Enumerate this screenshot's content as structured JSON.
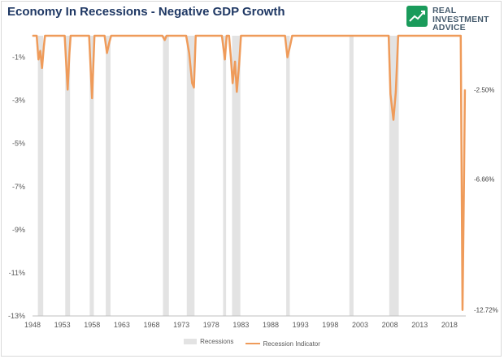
{
  "title": "Economy In Recessions - Negative GDP Growth",
  "logo": {
    "lines": [
      "REAL",
      "INVESTMENT",
      "ADVICE"
    ],
    "icon": "rising-chart-icon",
    "color": "#475c6e",
    "accent": "#1a9b5b"
  },
  "colors": {
    "recession_band": "#e3e3e3",
    "indicator_line": "#ef9b5a",
    "tick_text": "#595959",
    "title": "#1f3864"
  },
  "chart_data": {
    "type": "line",
    "title": "Economy In Recessions - Negative GDP Growth",
    "xlabel": "",
    "ylabel": "",
    "xlim": [
      1948,
      2020.75
    ],
    "ylim": [
      -13,
      0
    ],
    "grid": false,
    "legend_position": "bottom",
    "x_ticks": [
      "1948",
      "1953",
      "1958",
      "1963",
      "1968",
      "1973",
      "1978",
      "1983",
      "1988",
      "1993",
      "1998",
      "2003",
      "2008",
      "2013",
      "2018"
    ],
    "y_ticks": [
      "-1%",
      "-3%",
      "-5%",
      "-7%",
      "-9%",
      "-11%",
      "-13%"
    ],
    "y_tick_values": [
      -1,
      -3,
      -5,
      -7,
      -9,
      -11,
      -13
    ],
    "recessions": [
      {
        "start": 1948.9,
        "end": 1949.8
      },
      {
        "start": 1953.5,
        "end": 1954.3
      },
      {
        "start": 1957.6,
        "end": 1958.3
      },
      {
        "start": 1960.3,
        "end": 1961.1
      },
      {
        "start": 1969.9,
        "end": 1970.9
      },
      {
        "start": 1973.9,
        "end": 1975.2
      },
      {
        "start": 1980.0,
        "end": 1980.5
      },
      {
        "start": 1981.5,
        "end": 1982.9
      },
      {
        "start": 1990.6,
        "end": 1991.2
      },
      {
        "start": 2001.2,
        "end": 2001.9
      },
      {
        "start": 2007.9,
        "end": 2009.5
      }
    ],
    "series": [
      {
        "name": "Recession Indicator",
        "x": [
          1948.0,
          1948.7,
          1949.0,
          1949.3,
          1949.6,
          1949.9,
          1950.1,
          1953.4,
          1953.9,
          1954.2,
          1954.4,
          1957.5,
          1958.0,
          1958.4,
          1960.1,
          1960.5,
          1960.9,
          1961.2,
          1969.8,
          1970.2,
          1970.5,
          1973.8,
          1974.3,
          1974.8,
          1975.1,
          1975.4,
          1979.8,
          1980.3,
          1980.6,
          1981.0,
          1981.3,
          1981.6,
          1982.0,
          1982.3,
          1982.7,
          1983.0,
          1990.4,
          1990.8,
          1991.3,
          1991.6,
          2007.8,
          2008.1,
          2008.6,
          2009.0,
          2009.4,
          2019.9,
          2020.2,
          2020.45,
          2020.6
        ],
        "values": [
          0,
          0,
          -1.1,
          -0.7,
          -1.5,
          -0.5,
          0,
          0,
          -2.5,
          -0.8,
          0,
          0,
          -2.9,
          0,
          0,
          -0.8,
          -0.3,
          0,
          0,
          -0.2,
          0,
          0,
          -0.8,
          -2.2,
          -2.4,
          0,
          0,
          -1.1,
          0,
          0,
          -1.0,
          -2.2,
          -1.2,
          -2.6,
          -1.3,
          0,
          0,
          -1.0,
          -0.4,
          0,
          0,
          -2.7,
          -3.9,
          -2.6,
          0,
          0,
          -12.72,
          -6.66,
          -2.5
        ]
      }
    ],
    "data_labels": [
      "-2.50%",
      "-6.66%",
      "-12.72%"
    ],
    "data_label_values": [
      -2.5,
      -6.66,
      -12.72
    ]
  },
  "legend": {
    "recessions_label": "Recessions",
    "indicator_label": "Recession Indicator"
  }
}
